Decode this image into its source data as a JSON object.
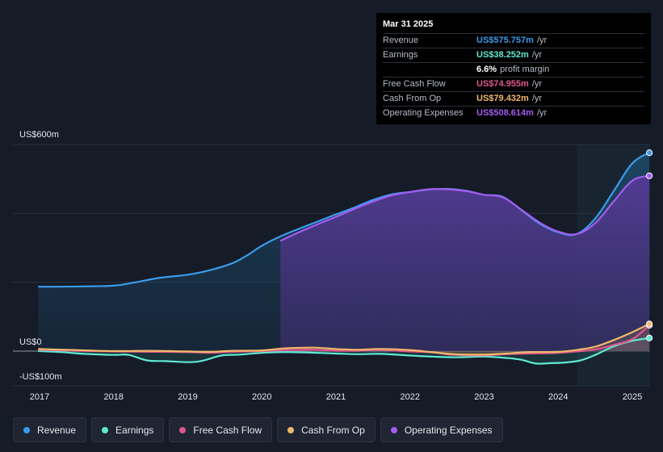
{
  "tooltip": {
    "date": "Mar 31 2025",
    "rows": [
      {
        "label": "Revenue",
        "value": "US$575.757m",
        "unit": "/yr",
        "color": "#3a9bea"
      },
      {
        "label": "Earnings",
        "value": "US$38.252m",
        "unit": "/yr",
        "color": "#5ee8d2"
      },
      {
        "label": "Free Cash Flow",
        "value": "US$74.955m",
        "unit": "/yr",
        "color": "#e0578f"
      },
      {
        "label": "Cash From Op",
        "value": "US$79.432m",
        "unit": "/yr",
        "color": "#f1b86a"
      },
      {
        "label": "Operating Expenses",
        "value": "US$508.614m",
        "unit": "/yr",
        "color": "#a35cf0"
      }
    ],
    "profit_margin_value": "6.6%",
    "profit_margin_text": "profit margin"
  },
  "legend": [
    {
      "label": "Revenue",
      "color": "#3a9bea"
    },
    {
      "label": "Earnings",
      "color": "#5ee8d2"
    },
    {
      "label": "Free Cash Flow",
      "color": "#e0578f"
    },
    {
      "label": "Cash From Op",
      "color": "#f1b86a"
    },
    {
      "label": "Operating Expenses",
      "color": "#a35cf0"
    }
  ],
  "chart_data": {
    "type": "area",
    "ytick_labels": [
      "US$600m",
      "US$0",
      "-US$100m"
    ],
    "ylim": [
      -100,
      600
    ],
    "x_ticks": [
      "2017",
      "2018",
      "2019",
      "2020",
      "2021",
      "2022",
      "2023",
      "2024",
      "2025"
    ],
    "x_tick_values": [
      2017,
      2018,
      2019,
      2020,
      2021,
      2022,
      2023,
      2024,
      2025
    ],
    "highlight_start": 2024.25,
    "series": [
      {
        "name": "Revenue",
        "color": "#3a9bea",
        "x": [
          2016.98,
          2017.3,
          2017.6,
          2018.0,
          2018.3,
          2018.6,
          2019.0,
          2019.3,
          2019.6,
          2019.8,
          2020.0,
          2020.25,
          2020.5,
          2020.75,
          2021.0,
          2021.25,
          2021.5,
          2021.75,
          2022.0,
          2022.25,
          2022.5,
          2022.75,
          2023.0,
          2023.25,
          2023.5,
          2023.75,
          2024.0,
          2024.25,
          2024.5,
          2024.75,
          2025.0,
          2025.23
        ],
        "y": [
          187,
          187,
          188,
          190,
          200,
          212,
          222,
          235,
          255,
          278,
          306,
          333,
          355,
          376,
          397,
          417,
          439,
          455,
          462,
          469,
          471,
          466,
          454,
          448,
          410,
          370,
          345,
          340,
          385,
          465,
          545,
          576
        ]
      },
      {
        "name": "Operating Expenses",
        "color": "#a35cf0",
        "x": [
          2020.25,
          2020.5,
          2020.75,
          2021.0,
          2021.25,
          2021.5,
          2021.75,
          2022.0,
          2022.25,
          2022.5,
          2022.75,
          2023.0,
          2023.25,
          2023.5,
          2023.75,
          2024.0,
          2024.25,
          2024.5,
          2024.75,
          2025.0,
          2025.23
        ],
        "y": [
          320,
          345,
          368,
          390,
          413,
          434,
          452,
          462,
          470,
          470,
          465,
          454,
          447,
          411,
          373,
          347,
          340,
          372,
          435,
          495,
          509
        ]
      },
      {
        "name": "Earnings",
        "color": "#5ee8d2",
        "x": [
          2016.98,
          2017.3,
          2017.6,
          2018.0,
          2018.2,
          2018.45,
          2018.7,
          2019.0,
          2019.2,
          2019.45,
          2019.7,
          2020.0,
          2020.3,
          2020.6,
          2021.0,
          2021.3,
          2021.6,
          2022.0,
          2022.3,
          2022.6,
          2023.0,
          2023.3,
          2023.5,
          2023.7,
          2023.9,
          2024.1,
          2024.3,
          2024.5,
          2024.75,
          2025.0,
          2025.23
        ],
        "y": [
          0,
          -3,
          -8,
          -11,
          -11,
          -27,
          -29,
          -32,
          -28,
          -13,
          -10,
          -5,
          -3,
          -4,
          -7,
          -9,
          -8,
          -13,
          -16,
          -18,
          -16,
          -20,
          -25,
          -36,
          -35,
          -33,
          -27,
          -11,
          14,
          30,
          38
        ]
      },
      {
        "name": "Free Cash Flow",
        "color": "#e0578f",
        "x": [
          2016.98,
          2017.5,
          2018.0,
          2018.5,
          2019.0,
          2019.3,
          2019.6,
          2020.0,
          2020.3,
          2020.7,
          2021.0,
          2021.3,
          2021.6,
          2022.0,
          2022.3,
          2022.6,
          2023.0,
          2023.3,
          2023.6,
          2024.0,
          2024.3,
          2024.5,
          2024.75,
          2025.0,
          2025.23
        ],
        "y": [
          4,
          1,
          -1,
          -2,
          -3,
          -5,
          -2,
          0,
          3,
          4,
          1,
          1,
          3,
          -1,
          -4,
          -11,
          -12,
          -9,
          -7,
          -5,
          0,
          5,
          18,
          35,
          75
        ]
      },
      {
        "name": "Cash From Op",
        "color": "#f1b86a",
        "x": [
          2016.98,
          2017.5,
          2018.0,
          2018.5,
          2019.0,
          2019.3,
          2019.6,
          2020.0,
          2020.3,
          2020.7,
          2021.0,
          2021.3,
          2021.6,
          2022.0,
          2022.3,
          2022.6,
          2023.0,
          2023.3,
          2023.6,
          2024.0,
          2024.3,
          2024.5,
          2024.75,
          2025.0,
          2025.23
        ],
        "y": [
          6,
          3,
          0,
          1,
          -1,
          -2,
          1,
          2,
          8,
          10,
          6,
          4,
          6,
          3,
          -3,
          -9,
          -10,
          -7,
          -3,
          -2,
          5,
          13,
          32,
          55,
          79
        ]
      }
    ]
  }
}
